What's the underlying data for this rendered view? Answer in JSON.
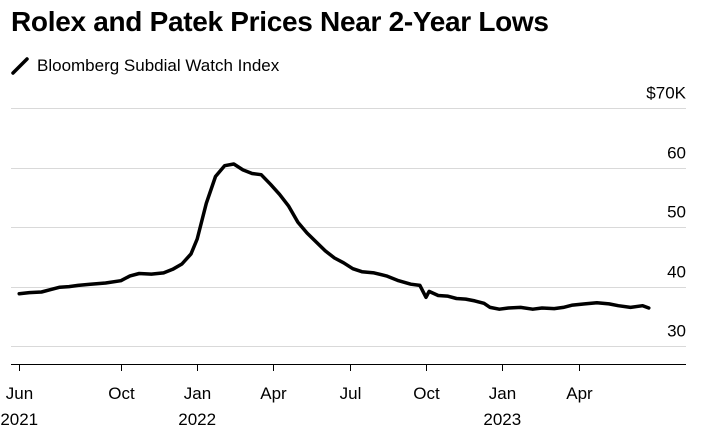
{
  "chart_data": {
    "type": "line",
    "title": "Rolex and Patek Prices Near 2-Year Lows",
    "legend": [
      "Bloomberg Subdial Watch Index"
    ],
    "legend_placement": "top-left",
    "ylabel": "",
    "xlabel": "",
    "ylim": [
      27,
      70
    ],
    "y_ticks": [
      {
        "value": 70,
        "label": "$70K"
      },
      {
        "value": 60,
        "label": "60"
      },
      {
        "value": 50,
        "label": "50"
      },
      {
        "value": 40,
        "label": "40"
      },
      {
        "value": 30,
        "label": "30"
      }
    ],
    "xlim": [
      2021.39,
      2023.52
    ],
    "x_ticks": [
      {
        "value": 2021.417,
        "label": "Jun"
      },
      {
        "value": 2021.75,
        "label": "Oct"
      },
      {
        "value": 2022.0,
        "label": "Jan"
      },
      {
        "value": 2022.25,
        "label": "Apr"
      },
      {
        "value": 2022.5,
        "label": "Jul"
      },
      {
        "value": 2022.75,
        "label": "Oct"
      },
      {
        "value": 2023.0,
        "label": "Jan"
      },
      {
        "value": 2023.25,
        "label": "Apr"
      }
    ],
    "year_labels": [
      {
        "value": 2021.417,
        "label": "2021"
      },
      {
        "value": 2022.0,
        "label": "2022"
      },
      {
        "value": 2023.0,
        "label": "2023"
      }
    ],
    "grid": true,
    "series": [
      {
        "name": "Bloomberg Subdial Watch Index",
        "color": "#000000",
        "points": [
          [
            2021.417,
            38.8
          ],
          [
            2021.45,
            39.0
          ],
          [
            2021.49,
            39.1
          ],
          [
            2021.52,
            39.5
          ],
          [
            2021.55,
            39.9
          ],
          [
            2021.58,
            40.0
          ],
          [
            2021.61,
            40.2
          ],
          [
            2021.65,
            40.4
          ],
          [
            2021.7,
            40.6
          ],
          [
            2021.75,
            41.0
          ],
          [
            2021.78,
            41.8
          ],
          [
            2021.81,
            42.2
          ],
          [
            2021.85,
            42.1
          ],
          [
            2021.89,
            42.3
          ],
          [
            2021.92,
            42.9
          ],
          [
            2021.95,
            43.8
          ],
          [
            2021.98,
            45.5
          ],
          [
            2022.0,
            48.0
          ],
          [
            2022.03,
            54.0
          ],
          [
            2022.06,
            58.5
          ],
          [
            2022.09,
            60.3
          ],
          [
            2022.12,
            60.6
          ],
          [
            2022.15,
            59.6
          ],
          [
            2022.18,
            59.0
          ],
          [
            2022.21,
            58.8
          ],
          [
            2022.24,
            57.2
          ],
          [
            2022.27,
            55.5
          ],
          [
            2022.3,
            53.5
          ],
          [
            2022.33,
            50.8
          ],
          [
            2022.36,
            49.0
          ],
          [
            2022.39,
            47.5
          ],
          [
            2022.42,
            46.0
          ],
          [
            2022.45,
            44.8
          ],
          [
            2022.48,
            44.0
          ],
          [
            2022.51,
            43.0
          ],
          [
            2022.54,
            42.5
          ],
          [
            2022.58,
            42.3
          ],
          [
            2022.62,
            41.8
          ],
          [
            2022.66,
            41.0
          ],
          [
            2022.7,
            40.4
          ],
          [
            2022.73,
            40.2
          ],
          [
            2022.75,
            38.2
          ],
          [
            2022.76,
            39.2
          ],
          [
            2022.79,
            38.5
          ],
          [
            2022.82,
            38.4
          ],
          [
            2022.85,
            38.0
          ],
          [
            2022.88,
            37.9
          ],
          [
            2022.91,
            37.6
          ],
          [
            2022.94,
            37.2
          ],
          [
            2022.96,
            36.5
          ],
          [
            2022.99,
            36.2
          ],
          [
            2023.02,
            36.4
          ],
          [
            2023.06,
            36.5
          ],
          [
            2023.1,
            36.2
          ],
          [
            2023.13,
            36.4
          ],
          [
            2023.17,
            36.3
          ],
          [
            2023.2,
            36.5
          ],
          [
            2023.23,
            36.9
          ],
          [
            2023.27,
            37.1
          ],
          [
            2023.31,
            37.3
          ],
          [
            2023.35,
            37.1
          ],
          [
            2023.38,
            36.8
          ],
          [
            2023.42,
            36.5
          ],
          [
            2023.46,
            36.8
          ],
          [
            2023.48,
            36.4
          ]
        ]
      }
    ]
  }
}
